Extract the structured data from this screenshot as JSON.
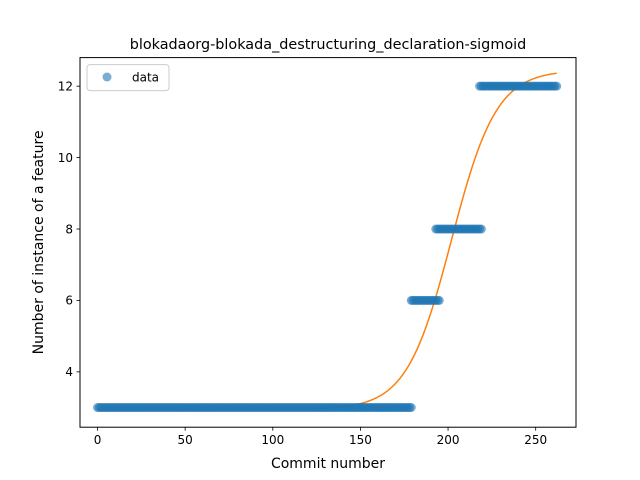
{
  "chart_data": {
    "type": "scatter",
    "title": "blokadaorg-blokada_destructuring_declaration-sigmoid",
    "xlabel": "Commit number",
    "ylabel": "Number of instance of a feature",
    "xlim": [
      -10,
      273
    ],
    "ylim": [
      2.45,
      12.8
    ],
    "xticks": [
      0,
      50,
      100,
      150,
      200,
      250
    ],
    "yticks": [
      4,
      6,
      8,
      10,
      12
    ],
    "grid": false,
    "legend": {
      "position": "top-left",
      "entries": [
        "data"
      ]
    },
    "series": [
      {
        "name": "data",
        "kind": "points",
        "color": "#1f77b4",
        "alpha": 0.6,
        "segments": [
          {
            "x_from": 0,
            "x_to": 179,
            "y": 3
          },
          {
            "x_from": 179,
            "x_to": 195,
            "y": 6
          },
          {
            "x_from": 193,
            "x_to": 219,
            "y": 8
          },
          {
            "x_from": 218,
            "x_to": 262,
            "y": 12
          }
        ]
      },
      {
        "name": "",
        "kind": "sigmoid-fit",
        "color": "#ff7f0e",
        "x_from": 0,
        "x_to": 262,
        "params": {
          "lower": 2.95,
          "upper": 12.45,
          "midpoint": 202,
          "slope": 0.078
        }
      }
    ]
  }
}
